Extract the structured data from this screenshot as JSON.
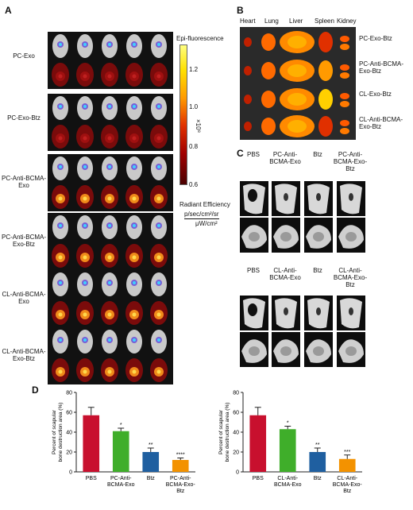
{
  "panelA": {
    "letter": "A",
    "rows": [
      {
        "label": "PC-Exo"
      },
      {
        "label": "PC-Exo-Btz"
      },
      {
        "label": "PC-Anti-BCMA-Exo"
      },
      {
        "label": "PC-Anti-BCMA-Exo-Btz"
      },
      {
        "label": "CL-Anti-BCMA-Exo"
      },
      {
        "label": "CL-Anti-BCMA-Exo-Btz"
      }
    ],
    "scale": {
      "title": "Epi-fluorescence",
      "ticks": [
        "1.2",
        "1.0",
        "0.8",
        "0.6"
      ],
      "multiplier": "×10⁸",
      "radiant_title": "Radiant Efficiency",
      "unit_top": "p/sec/cm²/sr",
      "unit_bottom": "μW/cm²"
    }
  },
  "panelB": {
    "letter": "B",
    "organs": [
      "Heart",
      "Lung",
      "Liver",
      "Spleen",
      "Kidney"
    ],
    "rows": [
      {
        "label": "PC-Exo-Btz"
      },
      {
        "label": "PC-Anti-BCMA-Exo-Btz"
      },
      {
        "label": "CL-Exo-Btz"
      },
      {
        "label": "CL-Anti-BCMA-Exo-Btz"
      }
    ]
  },
  "panelC": {
    "letter": "C",
    "top_groups": [
      "PBS",
      "PC-Anti-BCMA-Exo",
      "Btz",
      "PC-Anti-BCMA-Exo-Btz"
    ],
    "bottom_groups": [
      "PBS",
      "CL-Anti-BCMA-Exo",
      "Btz",
      "CL-Anti-BCMA-Exo-Btz"
    ]
  },
  "panelD": {
    "letter": "D"
  },
  "chart_data": [
    {
      "type": "bar",
      "ylabel": "Percent of scapular bone destruction area (%)",
      "ylim": [
        0,
        80
      ],
      "yticks": [
        0,
        20,
        40,
        60,
        80
      ],
      "categories": [
        "PBS",
        "PC-Anti-BCMA-Exo",
        "Btz",
        "PC-Anti-BCMA-Exo-Btz"
      ],
      "values": [
        57,
        41,
        20,
        12
      ],
      "errors": [
        8,
        3,
        4,
        2
      ],
      "significance": [
        "",
        "*",
        "**",
        "****"
      ],
      "colors": [
        "#c8102e",
        "#3fae2a",
        "#1f5fa0",
        "#f39200"
      ]
    },
    {
      "type": "bar",
      "ylabel": "Percent of scapular bone destruction area (%)",
      "ylim": [
        0,
        80
      ],
      "yticks": [
        0,
        20,
        40,
        60,
        80
      ],
      "categories": [
        "PBS",
        "CL-Anti-BCMA-Exo",
        "Btz",
        "CL-Anti-BCMA-Exo-Btz"
      ],
      "values": [
        57,
        43,
        20,
        13
      ],
      "errors": [
        8,
        3,
        4,
        4
      ],
      "significance": [
        "",
        "*",
        "**",
        "***"
      ],
      "colors": [
        "#c8102e",
        "#3fae2a",
        "#1f5fa0",
        "#f39200"
      ]
    }
  ]
}
